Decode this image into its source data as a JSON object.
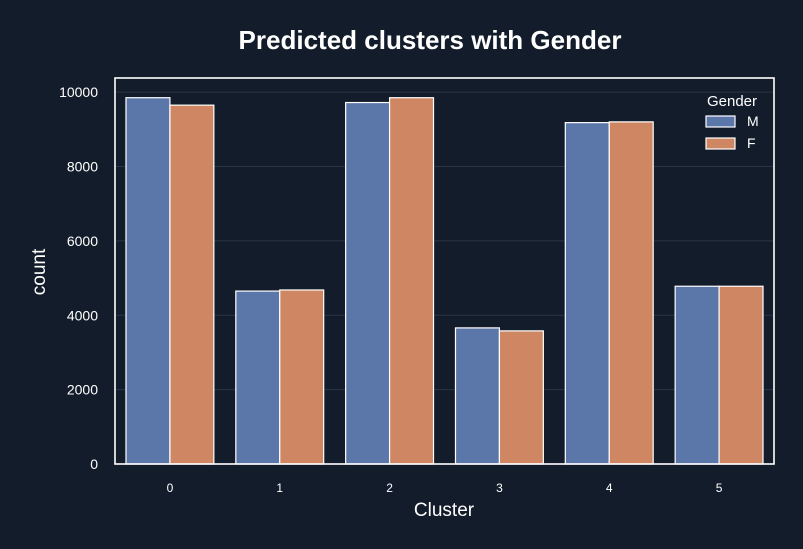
{
  "chart_data": {
    "type": "bar",
    "title": "Predicted clusters with Gender",
    "xlabel": "Cluster",
    "ylabel": "count",
    "categories": [
      "0",
      "1",
      "2",
      "3",
      "4",
      "5"
    ],
    "series": [
      {
        "name": "M",
        "values": [
          9850,
          4650,
          9720,
          3660,
          9180,
          4780
        ]
      },
      {
        "name": "F",
        "values": [
          9650,
          4680,
          9850,
          3580,
          9200,
          4780
        ]
      }
    ],
    "ylim": [
      0,
      10380
    ],
    "yticks": [
      0,
      2000,
      4000,
      6000,
      8000,
      10000
    ],
    "grid": true,
    "legend": {
      "title": "Gender",
      "placement": "top-right"
    },
    "colors": {
      "M": "#5b76a8",
      "F": "#cf8763",
      "background": "#131c2a"
    }
  }
}
